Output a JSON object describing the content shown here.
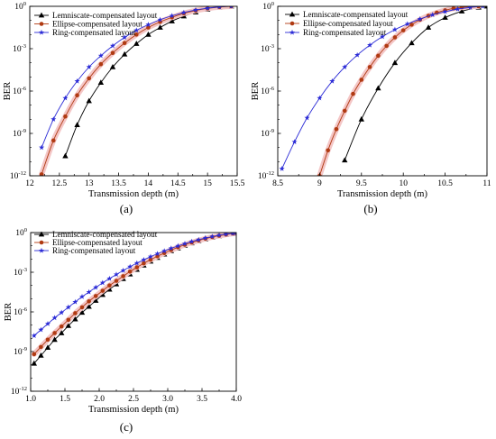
{
  "colors": {
    "lemniscate": "#000000",
    "ellipse": "#b03a12",
    "ring": "#2b2bd6",
    "shade": "#f4c6c6"
  },
  "legend_labels": {
    "lemniscate": "Lemniscate-compensated layout",
    "ellipse": "Ellipse-compensated layout",
    "ring": "Ring-compensated layout"
  },
  "chart_data": [
    {
      "type": "line",
      "panel_label": "(a)",
      "xlabel": "Transmission depth (m)",
      "ylabel": "BER",
      "xlim": [
        12,
        15.5
      ],
      "ylim_exp": [
        -12,
        0
      ],
      "log_y": true,
      "xticks": [
        "12",
        "12.5",
        "13",
        "13.5",
        "14",
        "14.5",
        "15",
        "15.5"
      ],
      "yticks": [
        {
          "base": "10",
          "exp": "0"
        },
        {
          "base": "10",
          "exp": "-3"
        },
        {
          "base": "10",
          "exp": "-6"
        },
        {
          "base": "10",
          "exp": "-9"
        },
        {
          "base": "10",
          "exp": "-12"
        }
      ],
      "legend_position": "top-left",
      "series": [
        {
          "key": "lemniscate",
          "marker": "triangle",
          "points": [
            [
              12.6,
              -10.6
            ],
            [
              12.8,
              -8.4
            ],
            [
              13.0,
              -6.7
            ],
            [
              13.2,
              -5.4
            ],
            [
              13.4,
              -4.3
            ],
            [
              13.6,
              -3.4
            ],
            [
              13.8,
              -2.65
            ],
            [
              14.0,
              -2.0
            ],
            [
              14.2,
              -1.5
            ],
            [
              14.4,
              -1.05
            ],
            [
              14.6,
              -0.7
            ],
            [
              14.8,
              -0.42
            ],
            [
              15.0,
              -0.22
            ],
            [
              15.2,
              -0.08
            ],
            [
              15.4,
              0.0
            ]
          ]
        },
        {
          "key": "ellipse",
          "marker": "circle",
          "points": [
            [
              12.2,
              -11.9
            ],
            [
              12.4,
              -9.5
            ],
            [
              12.6,
              -7.8
            ],
            [
              12.8,
              -6.3
            ],
            [
              13.0,
              -5.1
            ],
            [
              13.2,
              -4.1
            ],
            [
              13.4,
              -3.3
            ],
            [
              13.6,
              -2.6
            ],
            [
              13.8,
              -2.0
            ],
            [
              14.0,
              -1.5
            ],
            [
              14.2,
              -1.1
            ],
            [
              14.4,
              -0.78
            ],
            [
              14.6,
              -0.5
            ],
            [
              14.8,
              -0.3
            ],
            [
              15.0,
              -0.15
            ],
            [
              15.2,
              -0.05
            ],
            [
              15.4,
              0.0
            ]
          ]
        },
        {
          "key": "ring",
          "marker": "star",
          "points": [
            [
              12.2,
              -10.0
            ],
            [
              12.4,
              -8.0
            ],
            [
              12.6,
              -6.5
            ],
            [
              12.8,
              -5.3
            ],
            [
              13.0,
              -4.3
            ],
            [
              13.2,
              -3.5
            ],
            [
              13.4,
              -2.8
            ],
            [
              13.6,
              -2.2
            ],
            [
              13.8,
              -1.7
            ],
            [
              14.0,
              -1.3
            ],
            [
              14.2,
              -0.95
            ],
            [
              14.4,
              -0.67
            ],
            [
              14.6,
              -0.44
            ],
            [
              14.8,
              -0.26
            ],
            [
              15.0,
              -0.13
            ],
            [
              15.2,
              -0.04
            ],
            [
              15.4,
              0.0
            ]
          ]
        }
      ]
    },
    {
      "type": "line",
      "panel_label": "(b)",
      "xlabel": "Transmission depth (m)",
      "ylabel": "BER",
      "xlim": [
        8.5,
        11
      ],
      "ylim_exp": [
        -12,
        0
      ],
      "log_y": true,
      "xticks": [
        "8.5",
        "9",
        "9.5",
        "10",
        "10.5",
        "11"
      ],
      "yticks": [
        {
          "base": "10",
          "exp": "0"
        },
        {
          "base": "10",
          "exp": "-3"
        },
        {
          "base": "10",
          "exp": "-6"
        },
        {
          "base": "10",
          "exp": "-9"
        },
        {
          "base": "10",
          "exp": "-12"
        }
      ],
      "legend_position": "top-left",
      "series": [
        {
          "key": "lemniscate",
          "marker": "triangle",
          "points": [
            [
              9.3,
              -10.9
            ],
            [
              9.5,
              -8.0
            ],
            [
              9.7,
              -5.8
            ],
            [
              9.9,
              -4.0
            ],
            [
              10.1,
              -2.6
            ],
            [
              10.3,
              -1.5
            ],
            [
              10.5,
              -0.8
            ],
            [
              10.7,
              -0.35
            ],
            [
              10.9,
              -0.08
            ],
            [
              11.0,
              0.0
            ]
          ]
        },
        {
          "key": "ellipse",
          "marker": "circle",
          "points": [
            [
              9.0,
              -12.0
            ],
            [
              9.1,
              -10.2
            ],
            [
              9.2,
              -8.7
            ],
            [
              9.3,
              -7.4
            ],
            [
              9.4,
              -6.2
            ],
            [
              9.5,
              -5.2
            ],
            [
              9.6,
              -4.3
            ],
            [
              9.7,
              -3.5
            ],
            [
              9.8,
              -2.8
            ],
            [
              9.9,
              -2.2
            ],
            [
              10.0,
              -1.7
            ],
            [
              10.1,
              -1.3
            ],
            [
              10.2,
              -0.95
            ],
            [
              10.3,
              -0.67
            ],
            [
              10.4,
              -0.45
            ],
            [
              10.5,
              -0.28
            ],
            [
              10.6,
              -0.15
            ],
            [
              10.7,
              -0.07
            ],
            [
              10.8,
              -0.02
            ],
            [
              10.9,
              0.0
            ]
          ]
        },
        {
          "key": "ring",
          "marker": "star",
          "points": [
            [
              8.55,
              -11.5
            ],
            [
              8.7,
              -9.6
            ],
            [
              8.85,
              -7.9
            ],
            [
              9.0,
              -6.5
            ],
            [
              9.15,
              -5.3
            ],
            [
              9.3,
              -4.3
            ],
            [
              9.45,
              -3.45
            ],
            [
              9.6,
              -2.75
            ],
            [
              9.75,
              -2.15
            ],
            [
              9.9,
              -1.65
            ],
            [
              10.05,
              -1.25
            ],
            [
              10.2,
              -0.9
            ],
            [
              10.35,
              -0.6
            ],
            [
              10.5,
              -0.38
            ],
            [
              10.65,
              -0.2
            ],
            [
              10.8,
              -0.08
            ],
            [
              10.95,
              0.0
            ]
          ]
        }
      ]
    },
    {
      "type": "line",
      "panel_label": "(c)",
      "xlabel": "Transmission depth (m)",
      "ylabel": "BER",
      "xlim": [
        1.0,
        4.0
      ],
      "ylim_exp": [
        -12,
        0
      ],
      "log_y": true,
      "xticks": [
        "1.0",
        "1.5",
        "2.0",
        "2.5",
        "3.0",
        "3.5",
        "4.0"
      ],
      "yticks": [
        {
          "base": "10",
          "exp": "0"
        },
        {
          "base": "10",
          "exp": "-3"
        },
        {
          "base": "10",
          "exp": "-6"
        },
        {
          "base": "10",
          "exp": "-9"
        },
        {
          "base": "10",
          "exp": "-12"
        }
      ],
      "legend_position": "top-left",
      "series": [
        {
          "key": "lemniscate",
          "marker": "triangle",
          "points": [
            [
              1.05,
              -9.9
            ],
            [
              1.15,
              -9.3
            ],
            [
              1.25,
              -8.7
            ],
            [
              1.35,
              -8.1
            ],
            [
              1.45,
              -7.6
            ],
            [
              1.55,
              -7.05
            ],
            [
              1.65,
              -6.55
            ],
            [
              1.75,
              -6.05
            ],
            [
              1.85,
              -5.6
            ],
            [
              1.95,
              -5.15
            ],
            [
              2.05,
              -4.7
            ],
            [
              2.15,
              -4.3
            ],
            [
              2.25,
              -3.9
            ],
            [
              2.35,
              -3.5
            ],
            [
              2.45,
              -3.15
            ],
            [
              2.55,
              -2.8
            ],
            [
              2.65,
              -2.48
            ],
            [
              2.75,
              -2.18
            ],
            [
              2.85,
              -1.9
            ],
            [
              2.95,
              -1.64
            ],
            [
              3.05,
              -1.4
            ],
            [
              3.15,
              -1.18
            ],
            [
              3.25,
              -0.98
            ],
            [
              3.35,
              -0.8
            ],
            [
              3.45,
              -0.64
            ],
            [
              3.55,
              -0.5
            ],
            [
              3.65,
              -0.37
            ],
            [
              3.75,
              -0.26
            ],
            [
              3.85,
              -0.16
            ],
            [
              3.95,
              -0.08
            ],
            [
              4.0,
              -0.05
            ]
          ]
        },
        {
          "key": "ellipse",
          "marker": "circle",
          "points": [
            [
              1.05,
              -9.2
            ],
            [
              1.15,
              -8.65
            ],
            [
              1.25,
              -8.1
            ],
            [
              1.35,
              -7.6
            ],
            [
              1.45,
              -7.1
            ],
            [
              1.55,
              -6.6
            ],
            [
              1.65,
              -6.1
            ],
            [
              1.75,
              -5.65
            ],
            [
              1.85,
              -5.2
            ],
            [
              1.95,
              -4.8
            ],
            [
              2.05,
              -4.4
            ],
            [
              2.15,
              -4.0
            ],
            [
              2.25,
              -3.65
            ],
            [
              2.35,
              -3.3
            ],
            [
              2.45,
              -2.95
            ],
            [
              2.55,
              -2.63
            ],
            [
              2.65,
              -2.33
            ],
            [
              2.75,
              -2.05
            ],
            [
              2.85,
              -1.79
            ],
            [
              2.95,
              -1.55
            ],
            [
              3.05,
              -1.32
            ],
            [
              3.15,
              -1.11
            ],
            [
              3.25,
              -0.92
            ],
            [
              3.35,
              -0.75
            ],
            [
              3.45,
              -0.6
            ],
            [
              3.55,
              -0.46
            ],
            [
              3.65,
              -0.34
            ],
            [
              3.75,
              -0.24
            ],
            [
              3.85,
              -0.15
            ],
            [
              3.95,
              -0.07
            ],
            [
              4.0,
              -0.04
            ]
          ]
        },
        {
          "key": "ring",
          "marker": "star",
          "points": [
            [
              1.05,
              -7.8
            ],
            [
              1.15,
              -7.35
            ],
            [
              1.25,
              -6.9
            ],
            [
              1.35,
              -6.45
            ],
            [
              1.45,
              -6.05
            ],
            [
              1.55,
              -5.65
            ],
            [
              1.65,
              -5.25
            ],
            [
              1.75,
              -4.85
            ],
            [
              1.85,
              -4.5
            ],
            [
              1.95,
              -4.15
            ],
            [
              2.05,
              -3.8
            ],
            [
              2.15,
              -3.48
            ],
            [
              2.25,
              -3.17
            ],
            [
              2.35,
              -2.87
            ],
            [
              2.45,
              -2.58
            ],
            [
              2.55,
              -2.31
            ],
            [
              2.65,
              -2.06
            ],
            [
              2.75,
              -1.82
            ],
            [
              2.85,
              -1.6
            ],
            [
              2.95,
              -1.39
            ],
            [
              3.05,
              -1.19
            ],
            [
              3.15,
              -1.01
            ],
            [
              3.25,
              -0.84
            ],
            [
              3.35,
              -0.68
            ],
            [
              3.45,
              -0.54
            ],
            [
              3.55,
              -0.41
            ],
            [
              3.65,
              -0.3
            ],
            [
              3.75,
              -0.2
            ],
            [
              3.85,
              -0.12
            ],
            [
              3.95,
              -0.06
            ],
            [
              4.0,
              -0.03
            ]
          ]
        }
      ]
    }
  ]
}
